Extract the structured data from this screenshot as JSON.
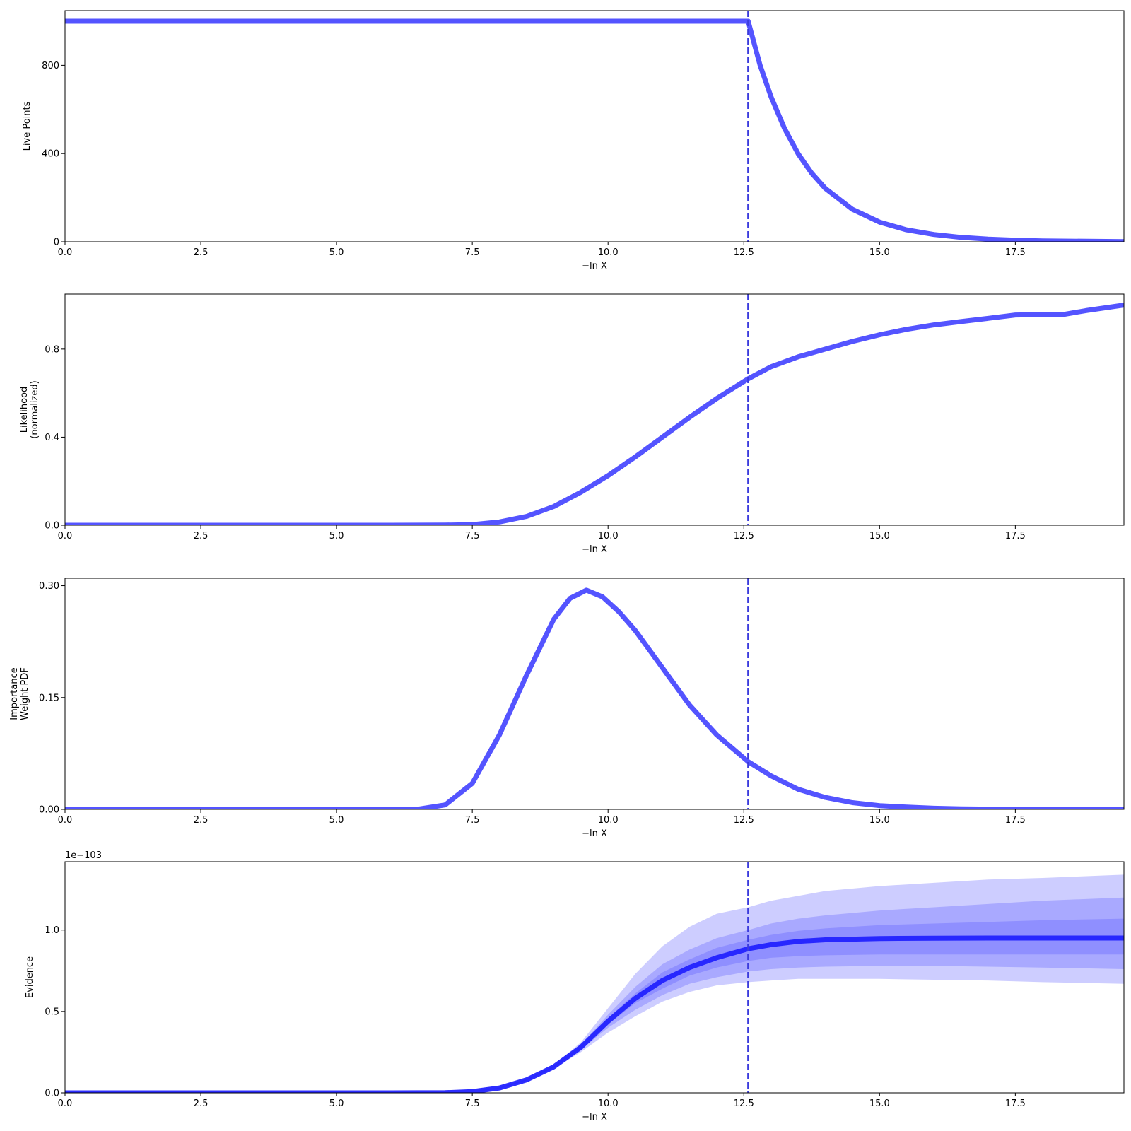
{
  "chart_data": [
    {
      "type": "line",
      "xlabel": "−ln X",
      "ylabel": "Live Points",
      "xlim": [
        0,
        19.5
      ],
      "ylim": [
        0,
        1048
      ],
      "x_ticks": [
        0,
        2.5,
        5,
        7.5,
        10,
        12.5,
        15,
        17.5
      ],
      "x_tick_labels": [
        "0.0",
        "2.5",
        "5.0",
        "7.5",
        "10.0",
        "12.5",
        "15.0",
        "17.5"
      ],
      "y_ticks": [
        0,
        400,
        800
      ],
      "y_tick_labels": [
        "0",
        "400",
        "800"
      ],
      "vline_x": 12.58,
      "color": "#4b4bff",
      "series": [
        {
          "x": [
            0,
            2,
            4,
            6,
            8,
            10,
            12,
            12.58,
            12.8,
            13.0,
            13.25,
            13.5,
            13.75,
            14.0,
            14.5,
            15.0,
            15.5,
            16.0,
            16.5,
            17.0,
            17.5,
            18.0,
            18.5,
            19.0,
            19.5
          ],
          "values": [
            1000,
            1000,
            1000,
            1000,
            1000,
            1000,
            1000,
            1000,
            800,
            658,
            513,
            399,
            311,
            242,
            147,
            89,
            54,
            33,
            20,
            12,
            7,
            4,
            3,
            2,
            1
          ]
        }
      ]
    },
    {
      "type": "line",
      "xlabel": "−ln X",
      "ylabel": [
        "Likelihood",
        "(normalized)"
      ],
      "xlim": [
        0,
        19.5
      ],
      "ylim": [
        0,
        1.05
      ],
      "x_ticks": [
        0,
        2.5,
        5,
        7.5,
        10,
        12.5,
        15,
        17.5
      ],
      "x_tick_labels": [
        "0.0",
        "2.5",
        "5.0",
        "7.5",
        "10.0",
        "12.5",
        "15.0",
        "17.5"
      ],
      "y_ticks": [
        0,
        0.4,
        0.8
      ],
      "y_tick_labels": [
        "0.0",
        "0.4",
        "0.8"
      ],
      "vline_x": 12.58,
      "color": "#4b4bff",
      "series": [
        {
          "x": [
            0,
            2,
            4,
            6,
            7.0,
            7.5,
            8.0,
            8.5,
            9.0,
            9.5,
            10.0,
            10.5,
            11.0,
            11.5,
            12.0,
            12.58,
            13.0,
            13.5,
            14.0,
            14.5,
            15.0,
            15.5,
            16.0,
            16.5,
            17.0,
            17.5,
            18.0,
            18.4,
            18.8,
            19.5
          ],
          "values": [
            0,
            0,
            0,
            0,
            0.0005,
            0.003,
            0.015,
            0.04,
            0.085,
            0.15,
            0.225,
            0.31,
            0.4,
            0.49,
            0.575,
            0.665,
            0.72,
            0.765,
            0.8,
            0.835,
            0.865,
            0.89,
            0.91,
            0.925,
            0.94,
            0.955,
            0.957,
            0.958,
            0.975,
            1.0
          ]
        }
      ]
    },
    {
      "type": "line",
      "xlabel": "−ln X",
      "ylabel": [
        "Importance",
        "Weight PDF"
      ],
      "xlim": [
        0,
        19.5
      ],
      "ylim": [
        0,
        0.31
      ],
      "x_ticks": [
        0,
        2.5,
        5,
        7.5,
        10,
        12.5,
        15,
        17.5
      ],
      "x_tick_labels": [
        "0.0",
        "2.5",
        "5.0",
        "7.5",
        "10.0",
        "12.5",
        "15.0",
        "17.5"
      ],
      "y_ticks": [
        0,
        0.15,
        0.3
      ],
      "y_tick_labels": [
        "0.00",
        "0.15",
        "0.30"
      ],
      "vline_x": 12.58,
      "color": "#4b4bff",
      "series": [
        {
          "x": [
            0,
            2,
            4,
            6,
            6.5,
            7.0,
            7.5,
            8.0,
            8.5,
            9.0,
            9.3,
            9.6,
            9.9,
            10.2,
            10.5,
            10.8,
            11.0,
            11.5,
            12.0,
            12.58,
            13.0,
            13.5,
            14.0,
            14.5,
            15.0,
            15.5,
            16.0,
            16.5,
            17.0,
            17.5,
            18.0,
            19.5
          ],
          "values": [
            0,
            0,
            0,
            0,
            0.0003,
            0.006,
            0.035,
            0.1,
            0.18,
            0.255,
            0.283,
            0.294,
            0.285,
            0.265,
            0.24,
            0.21,
            0.19,
            0.14,
            0.1,
            0.064,
            0.045,
            0.027,
            0.016,
            0.009,
            0.005,
            0.003,
            0.0015,
            0.0008,
            0.0004,
            0.0002,
            0.0001,
            0
          ]
        }
      ]
    },
    {
      "type": "area",
      "xlabel": "−ln X",
      "ylabel": "Evidence",
      "offset_label": "1e−103",
      "xlim": [
        0,
        19.5
      ],
      "ylim": [
        0,
        1.42
      ],
      "x_ticks": [
        0,
        2.5,
        5,
        7.5,
        10,
        12.5,
        15,
        17.5
      ],
      "x_tick_labels": [
        "0.0",
        "2.5",
        "5.0",
        "7.5",
        "10.0",
        "12.5",
        "15.0",
        "17.5"
      ],
      "y_ticks": [
        0,
        0.5,
        1.0
      ],
      "y_tick_labels": [
        "0.0",
        "0.5",
        "1.0"
      ],
      "vline_x": 12.58,
      "color": "#2222ff",
      "band_color": "#4b4bff",
      "x": [
        0,
        2,
        4,
        6,
        7.0,
        7.5,
        8.0,
        8.5,
        9.0,
        9.5,
        10.0,
        10.5,
        11.0,
        11.5,
        12.0,
        12.58,
        13.0,
        13.5,
        14.0,
        15.0,
        16.0,
        17.0,
        18.0,
        19.5
      ],
      "series": [
        {
          "name": "median",
          "values": [
            0,
            0,
            0,
            0,
            0.001,
            0.008,
            0.03,
            0.08,
            0.16,
            0.28,
            0.44,
            0.58,
            0.69,
            0.77,
            0.83,
            0.885,
            0.91,
            0.93,
            0.94,
            0.948,
            0.95,
            0.951,
            0.951,
            0.951
          ]
        }
      ],
      "bands": [
        {
          "lower": [
            0,
            0,
            0,
            0,
            0.001,
            0.007,
            0.027,
            0.075,
            0.15,
            0.25,
            0.37,
            0.47,
            0.56,
            0.62,
            0.66,
            0.68,
            0.69,
            0.7,
            0.7,
            0.7,
            0.695,
            0.69,
            0.68,
            0.67
          ],
          "upper": [
            0,
            0,
            0,
            0,
            0.001,
            0.009,
            0.033,
            0.085,
            0.17,
            0.31,
            0.52,
            0.73,
            0.9,
            1.02,
            1.1,
            1.14,
            1.18,
            1.21,
            1.24,
            1.27,
            1.29,
            1.31,
            1.32,
            1.34
          ]
        },
        {
          "lower": [
            0,
            0,
            0,
            0,
            0.001,
            0.0075,
            0.028,
            0.077,
            0.155,
            0.265,
            0.4,
            0.51,
            0.6,
            0.67,
            0.71,
            0.745,
            0.76,
            0.77,
            0.775,
            0.78,
            0.78,
            0.775,
            0.77,
            0.76
          ],
          "upper": [
            0,
            0,
            0,
            0,
            0.001,
            0.0085,
            0.032,
            0.083,
            0.165,
            0.295,
            0.48,
            0.65,
            0.79,
            0.88,
            0.95,
            1.0,
            1.04,
            1.07,
            1.09,
            1.12,
            1.14,
            1.16,
            1.18,
            1.2
          ]
        },
        {
          "lower": [
            0,
            0,
            0,
            0,
            0.001,
            0.0078,
            0.029,
            0.078,
            0.157,
            0.272,
            0.42,
            0.55,
            0.64,
            0.72,
            0.77,
            0.81,
            0.83,
            0.84,
            0.845,
            0.85,
            0.85,
            0.85,
            0.85,
            0.85
          ],
          "upper": [
            0,
            0,
            0,
            0,
            0.001,
            0.0082,
            0.031,
            0.082,
            0.163,
            0.288,
            0.46,
            0.61,
            0.74,
            0.82,
            0.89,
            0.94,
            0.97,
            0.995,
            1.01,
            1.03,
            1.04,
            1.05,
            1.06,
            1.07
          ]
        }
      ]
    }
  ]
}
